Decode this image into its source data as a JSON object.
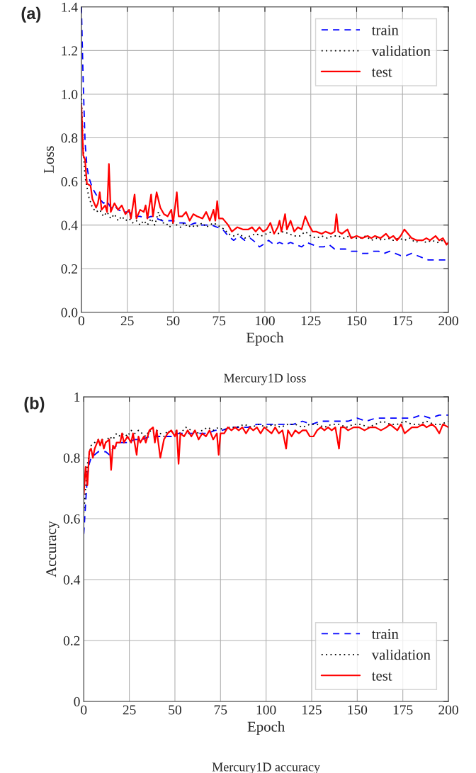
{
  "chart_data": [
    {
      "type": "line",
      "xlabel": "Epoch",
      "ylabel": "Loss",
      "annotations": [
        "(a)",
        "Mercury1D loss"
      ],
      "xlim": [
        0,
        200
      ],
      "ylim": [
        0,
        1.4
      ],
      "xticks": [
        0,
        25,
        50,
        75,
        100,
        125,
        150,
        175,
        200
      ],
      "yticks": [
        {
          "value": 0,
          "label": "0.0"
        },
        0.2,
        0.4,
        0.6,
        0.8,
        {
          "value": 1,
          "label": "1.0"
        },
        1.2,
        1.4
      ],
      "grid": true,
      "legend": "top right",
      "series": [
        {
          "name": "train",
          "color": "#0000ff",
          "line_style": "dashed",
          "x": [
            0,
            1,
            2,
            3,
            4,
            6,
            8,
            10,
            12,
            14,
            16,
            18,
            20,
            23,
            26,
            29,
            32,
            35,
            38,
            41,
            44,
            47,
            50,
            53,
            56,
            59,
            62,
            65,
            68,
            71,
            74,
            77,
            80,
            83,
            86,
            89,
            92,
            95,
            97,
            99,
            102,
            105,
            108,
            111,
            114,
            117,
            120,
            123,
            126,
            129,
            132,
            135,
            138,
            141,
            144,
            147,
            150,
            153,
            156,
            159,
            162,
            165,
            168,
            171,
            174,
            177,
            180,
            183,
            186,
            189,
            192,
            195,
            198,
            200
          ],
          "values": [
            1.4,
            1.05,
            0.78,
            0.67,
            0.62,
            0.57,
            0.54,
            0.52,
            0.5,
            0.51,
            0.48,
            0.49,
            0.47,
            0.46,
            0.46,
            0.44,
            0.44,
            0.43,
            0.44,
            0.43,
            0.42,
            0.42,
            0.42,
            0.41,
            0.41,
            0.4,
            0.41,
            0.4,
            0.4,
            0.4,
            0.39,
            0.38,
            0.35,
            0.33,
            0.35,
            0.33,
            0.34,
            0.32,
            0.3,
            0.31,
            0.33,
            0.31,
            0.32,
            0.31,
            0.32,
            0.31,
            0.3,
            0.32,
            0.31,
            0.3,
            0.3,
            0.31,
            0.29,
            0.29,
            0.29,
            0.28,
            0.28,
            0.27,
            0.27,
            0.28,
            0.28,
            0.27,
            0.28,
            0.27,
            0.26,
            0.26,
            0.27,
            0.26,
            0.25,
            0.24,
            0.24,
            0.24,
            0.24,
            0.24
          ]
        },
        {
          "name": "validation",
          "color": "#000000",
          "line_style": "dotted",
          "x": [
            0,
            1,
            2,
            4,
            6,
            8,
            10,
            12,
            14,
            16,
            18,
            20,
            22,
            24,
            26,
            28,
            30,
            32,
            34,
            36,
            38,
            40,
            42,
            44,
            46,
            48,
            50,
            52,
            54,
            56,
            58,
            60,
            62,
            64,
            66,
            68,
            70,
            72,
            74,
            76,
            78,
            80,
            83,
            86,
            89,
            92,
            95,
            98,
            101,
            104,
            107,
            110,
            113,
            116,
            119,
            122,
            125,
            128,
            131,
            134,
            137,
            140,
            143,
            146,
            149,
            152,
            155,
            158,
            161,
            164,
            167,
            170,
            173,
            176,
            179,
            182,
            185,
            188,
            191,
            194,
            197,
            200
          ],
          "values": [
            1.0,
            0.75,
            0.62,
            0.53,
            0.48,
            0.46,
            0.47,
            0.44,
            0.46,
            0.43,
            0.45,
            0.42,
            0.44,
            0.42,
            0.43,
            0.41,
            0.42,
            0.4,
            0.42,
            0.4,
            0.43,
            0.4,
            0.46,
            0.41,
            0.41,
            0.39,
            0.41,
            0.4,
            0.39,
            0.41,
            0.39,
            0.4,
            0.39,
            0.4,
            0.41,
            0.39,
            0.4,
            0.41,
            0.4,
            0.39,
            0.38,
            0.36,
            0.35,
            0.36,
            0.34,
            0.35,
            0.36,
            0.35,
            0.36,
            0.37,
            0.36,
            0.37,
            0.36,
            0.35,
            0.35,
            0.37,
            0.35,
            0.34,
            0.35,
            0.34,
            0.35,
            0.35,
            0.34,
            0.35,
            0.34,
            0.34,
            0.35,
            0.33,
            0.34,
            0.33,
            0.34,
            0.33,
            0.34,
            0.33,
            0.34,
            0.32,
            0.33,
            0.32,
            0.33,
            0.32,
            0.33,
            0.31
          ]
        },
        {
          "name": "test",
          "color": "#ff0000",
          "line_style": "solid",
          "x": [
            0,
            1,
            2,
            3,
            5,
            6,
            8,
            9,
            10,
            11,
            13,
            14,
            15,
            16,
            18,
            20,
            22,
            24,
            26,
            27,
            29,
            30,
            32,
            34,
            35,
            36,
            38,
            39,
            41,
            43,
            45,
            47,
            49,
            50,
            52,
            53,
            55,
            57,
            59,
            61,
            63,
            66,
            68,
            70,
            72,
            73,
            74,
            75,
            77,
            80,
            82,
            85,
            88,
            91,
            93,
            95,
            97,
            99,
            101,
            103,
            105,
            107,
            108,
            109,
            111,
            112,
            114,
            116,
            118,
            120,
            122,
            124,
            126,
            128,
            131,
            133,
            136,
            138,
            139,
            140,
            142,
            145,
            147,
            150,
            153,
            156,
            158,
            160,
            163,
            166,
            168,
            170,
            172,
            174,
            176,
            178,
            180,
            183,
            186,
            188,
            190,
            193,
            195,
            197,
            199,
            200
          ],
          "values": [
            0.95,
            0.72,
            0.7,
            0.59,
            0.58,
            0.52,
            0.48,
            0.5,
            0.55,
            0.47,
            0.49,
            0.46,
            0.68,
            0.46,
            0.5,
            0.47,
            0.49,
            0.45,
            0.47,
            0.43,
            0.54,
            0.43,
            0.47,
            0.46,
            0.49,
            0.43,
            0.54,
            0.44,
            0.55,
            0.48,
            0.45,
            0.44,
            0.47,
            0.41,
            0.55,
            0.44,
            0.44,
            0.46,
            0.42,
            0.45,
            0.44,
            0.43,
            0.46,
            0.42,
            0.47,
            0.42,
            0.51,
            0.43,
            0.43,
            0.4,
            0.37,
            0.39,
            0.38,
            0.38,
            0.39,
            0.37,
            0.39,
            0.37,
            0.38,
            0.41,
            0.36,
            0.39,
            0.42,
            0.37,
            0.45,
            0.38,
            0.42,
            0.37,
            0.39,
            0.38,
            0.44,
            0.4,
            0.37,
            0.37,
            0.36,
            0.37,
            0.36,
            0.37,
            0.45,
            0.37,
            0.36,
            0.38,
            0.34,
            0.35,
            0.34,
            0.35,
            0.34,
            0.35,
            0.34,
            0.36,
            0.34,
            0.35,
            0.33,
            0.35,
            0.38,
            0.36,
            0.34,
            0.33,
            0.33,
            0.34,
            0.33,
            0.35,
            0.33,
            0.34,
            0.31,
            0.32
          ]
        }
      ]
    },
    {
      "type": "line",
      "xlabel": "Epoch",
      "ylabel": "Accuracy",
      "annotations": [
        "(b)",
        "Mercury1D accuracy"
      ],
      "xlim": [
        0,
        200
      ],
      "ylim": [
        0,
        1
      ],
      "xticks": [
        0,
        25,
        50,
        75,
        100,
        125,
        150,
        175,
        200
      ],
      "yticks": [
        0,
        0.2,
        0.4,
        0.6,
        0.8,
        1
      ],
      "grid": true,
      "legend": "bottom right",
      "series": [
        {
          "name": "train",
          "color": "#0000ff",
          "line_style": "dashed",
          "x": [
            0,
            1,
            2,
            3,
            4,
            6,
            8,
            10,
            12,
            14,
            16,
            18,
            20,
            24,
            28,
            32,
            36,
            40,
            44,
            48,
            52,
            56,
            60,
            64,
            68,
            72,
            76,
            80,
            85,
            90,
            95,
            100,
            105,
            110,
            115,
            120,
            125,
            130,
            135,
            140,
            145,
            150,
            155,
            160,
            165,
            170,
            175,
            180,
            185,
            190,
            195,
            200
          ],
          "values": [
            0.55,
            0.65,
            0.74,
            0.78,
            0.8,
            0.81,
            0.82,
            0.82,
            0.82,
            0.81,
            0.83,
            0.84,
            0.85,
            0.85,
            0.86,
            0.86,
            0.87,
            0.87,
            0.87,
            0.87,
            0.88,
            0.88,
            0.88,
            0.88,
            0.88,
            0.89,
            0.89,
            0.9,
            0.9,
            0.9,
            0.91,
            0.91,
            0.91,
            0.91,
            0.91,
            0.92,
            0.91,
            0.92,
            0.92,
            0.92,
            0.92,
            0.93,
            0.92,
            0.93,
            0.93,
            0.93,
            0.93,
            0.93,
            0.94,
            0.93,
            0.94,
            0.94
          ]
        },
        {
          "name": "validation",
          "color": "#000000",
          "line_style": "dotted",
          "x": [
            0,
            2,
            4,
            6,
            8,
            10,
            12,
            14,
            16,
            18,
            20,
            22,
            24,
            26,
            28,
            30,
            32,
            34,
            36,
            38,
            40,
            42,
            44,
            46,
            48,
            50,
            53,
            56,
            59,
            62,
            65,
            68,
            71,
            74,
            77,
            80,
            84,
            88,
            92,
            96,
            100,
            104,
            108,
            112,
            116,
            120,
            124,
            128,
            132,
            136,
            140,
            144,
            148,
            152,
            156,
            160,
            164,
            168,
            172,
            176,
            180,
            184,
            188,
            192,
            196,
            200
          ],
          "values": [
            0.62,
            0.78,
            0.84,
            0.85,
            0.86,
            0.86,
            0.85,
            0.87,
            0.86,
            0.88,
            0.87,
            0.88,
            0.87,
            0.89,
            0.88,
            0.89,
            0.88,
            0.87,
            0.89,
            0.88,
            0.89,
            0.88,
            0.87,
            0.89,
            0.88,
            0.89,
            0.88,
            0.9,
            0.89,
            0.88,
            0.89,
            0.9,
            0.89,
            0.9,
            0.89,
            0.9,
            0.9,
            0.91,
            0.9,
            0.91,
            0.9,
            0.91,
            0.9,
            0.91,
            0.91,
            0.9,
            0.91,
            0.91,
            0.9,
            0.91,
            0.91,
            0.9,
            0.91,
            0.91,
            0.9,
            0.91,
            0.92,
            0.91,
            0.91,
            0.92,
            0.91,
            0.91,
            0.92,
            0.91,
            0.91,
            0.92
          ]
        },
        {
          "name": "test",
          "color": "#ff0000",
          "line_style": "solid",
          "x": [
            0,
            1,
            2,
            3,
            4,
            5,
            6,
            8,
            9,
            10,
            11,
            12,
            14,
            15,
            16,
            17,
            18,
            20,
            21,
            22,
            24,
            26,
            27,
            29,
            30,
            31,
            33,
            34,
            36,
            38,
            39,
            40,
            42,
            44,
            46,
            48,
            50,
            51,
            52,
            53,
            55,
            57,
            59,
            61,
            63,
            65,
            67,
            69,
            71,
            73,
            74,
            75,
            77,
            79,
            81,
            83,
            85,
            87,
            89,
            91,
            93,
            95,
            97,
            99,
            101,
            103,
            105,
            107,
            109,
            111,
            112,
            114,
            116,
            118,
            120,
            122,
            124,
            126,
            128,
            130,
            132,
            134,
            136,
            138,
            140,
            141,
            143,
            145,
            148,
            151,
            154,
            157,
            160,
            163,
            166,
            168,
            170,
            172,
            174,
            176,
            178,
            180,
            183,
            186,
            188,
            191,
            193,
            195,
            197,
            200
          ],
          "values": [
            0.68,
            0.77,
            0.71,
            0.82,
            0.83,
            0.8,
            0.83,
            0.86,
            0.84,
            0.86,
            0.83,
            0.85,
            0.86,
            0.76,
            0.84,
            0.83,
            0.85,
            0.85,
            0.88,
            0.85,
            0.87,
            0.85,
            0.88,
            0.81,
            0.87,
            0.85,
            0.87,
            0.85,
            0.89,
            0.9,
            0.85,
            0.89,
            0.8,
            0.86,
            0.88,
            0.89,
            0.87,
            0.89,
            0.78,
            0.88,
            0.87,
            0.89,
            0.87,
            0.89,
            0.86,
            0.88,
            0.87,
            0.89,
            0.86,
            0.88,
            0.81,
            0.88,
            0.88,
            0.9,
            0.89,
            0.9,
            0.89,
            0.9,
            0.88,
            0.9,
            0.89,
            0.9,
            0.88,
            0.9,
            0.89,
            0.88,
            0.9,
            0.88,
            0.89,
            0.83,
            0.89,
            0.87,
            0.89,
            0.88,
            0.89,
            0.89,
            0.87,
            0.87,
            0.89,
            0.9,
            0.89,
            0.9,
            0.89,
            0.9,
            0.83,
            0.9,
            0.9,
            0.89,
            0.9,
            0.9,
            0.89,
            0.9,
            0.9,
            0.89,
            0.9,
            0.91,
            0.9,
            0.89,
            0.91,
            0.88,
            0.89,
            0.9,
            0.9,
            0.91,
            0.9,
            0.91,
            0.9,
            0.88,
            0.91,
            0.9
          ]
        }
      ]
    }
  ]
}
